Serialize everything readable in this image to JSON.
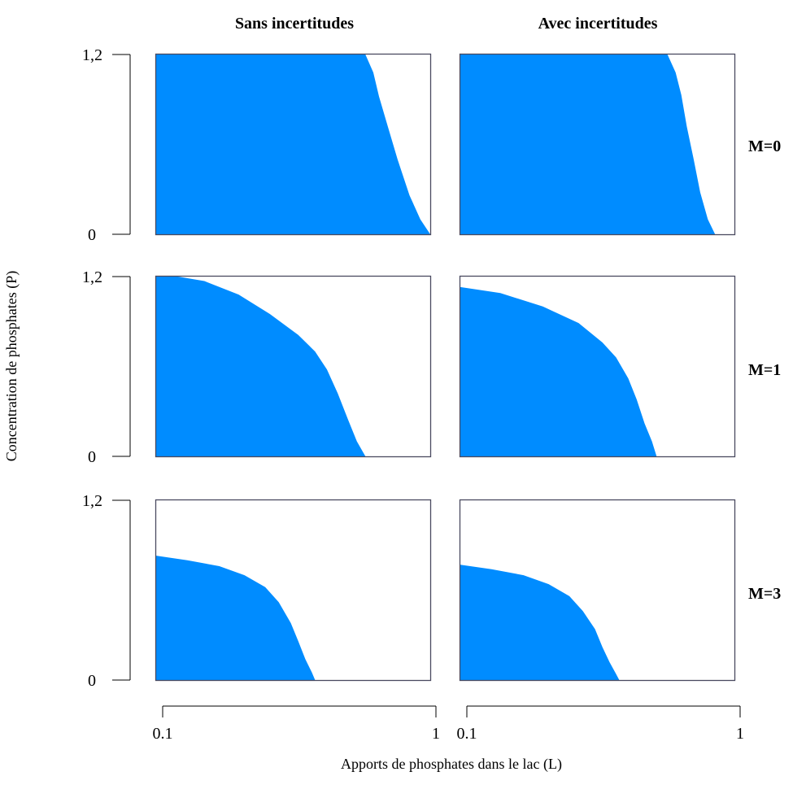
{
  "chart_data": {
    "type": "area",
    "ylabel": "Concentration de phosphates (P)",
    "xlabel": "Apports de phosphates dans le lac (L)",
    "x_scale": "log",
    "xlim": [
      0.1,
      1
    ],
    "ylim": [
      0,
      1.2
    ],
    "x_ticks": [
      "0.1",
      "1"
    ],
    "y_ticks": [
      "0",
      "1,2"
    ],
    "column_titles": [
      "Sans incertitudes",
      "Avec incertitudes"
    ],
    "row_labels": [
      "M=0",
      "M=1",
      "M=3"
    ],
    "fill_color": "#008cff",
    "panels": [
      {
        "row": "M=0",
        "column": "Sans incertitudes",
        "boundary": [
          [
            0.1,
            1.2
          ],
          [
            0.58,
            1.2
          ],
          [
            0.62,
            1.08
          ],
          [
            0.65,
            0.92
          ],
          [
            0.7,
            0.72
          ],
          [
            0.76,
            0.5
          ],
          [
            0.84,
            0.26
          ],
          [
            0.92,
            0.1
          ],
          [
            1.0,
            0.0
          ]
        ]
      },
      {
        "row": "M=0",
        "column": "Avec incertitudes",
        "boundary": [
          [
            0.1,
            1.2
          ],
          [
            0.57,
            1.2
          ],
          [
            0.61,
            1.08
          ],
          [
            0.64,
            0.93
          ],
          [
            0.67,
            0.72
          ],
          [
            0.71,
            0.5
          ],
          [
            0.75,
            0.28
          ],
          [
            0.8,
            0.1
          ],
          [
            0.85,
            0.0
          ]
        ]
      },
      {
        "row": "M=1",
        "column": "Sans incertitudes",
        "boundary": [
          [
            0.1,
            1.2
          ],
          [
            0.12,
            1.2
          ],
          [
            0.15,
            1.17
          ],
          [
            0.2,
            1.08
          ],
          [
            0.26,
            0.95
          ],
          [
            0.33,
            0.81
          ],
          [
            0.38,
            0.7
          ],
          [
            0.42,
            0.58
          ],
          [
            0.46,
            0.42
          ],
          [
            0.5,
            0.25
          ],
          [
            0.54,
            0.1
          ],
          [
            0.58,
            0.0
          ]
        ]
      },
      {
        "row": "M=1",
        "column": "Avec incertitudes",
        "boundary": [
          [
            0.1,
            1.13
          ],
          [
            0.14,
            1.09
          ],
          [
            0.2,
            1.0
          ],
          [
            0.27,
            0.89
          ],
          [
            0.33,
            0.76
          ],
          [
            0.37,
            0.66
          ],
          [
            0.41,
            0.52
          ],
          [
            0.44,
            0.38
          ],
          [
            0.47,
            0.22
          ],
          [
            0.5,
            0.1
          ],
          [
            0.52,
            0.0
          ]
        ]
      },
      {
        "row": "M=3",
        "column": "Sans incertitudes",
        "boundary": [
          [
            0.1,
            0.83
          ],
          [
            0.13,
            0.8
          ],
          [
            0.17,
            0.76
          ],
          [
            0.21,
            0.7
          ],
          [
            0.25,
            0.62
          ],
          [
            0.28,
            0.52
          ],
          [
            0.31,
            0.38
          ],
          [
            0.33,
            0.26
          ],
          [
            0.35,
            0.14
          ],
          [
            0.37,
            0.05
          ],
          [
            0.38,
            0.0
          ]
        ]
      },
      {
        "row": "M=3",
        "column": "Avec incertitudes",
        "boundary": [
          [
            0.1,
            0.77
          ],
          [
            0.13,
            0.74
          ],
          [
            0.17,
            0.7
          ],
          [
            0.21,
            0.64
          ],
          [
            0.25,
            0.56
          ],
          [
            0.28,
            0.46
          ],
          [
            0.31,
            0.34
          ],
          [
            0.33,
            0.22
          ],
          [
            0.35,
            0.12
          ],
          [
            0.37,
            0.04
          ],
          [
            0.38,
            0.0
          ]
        ]
      }
    ]
  }
}
